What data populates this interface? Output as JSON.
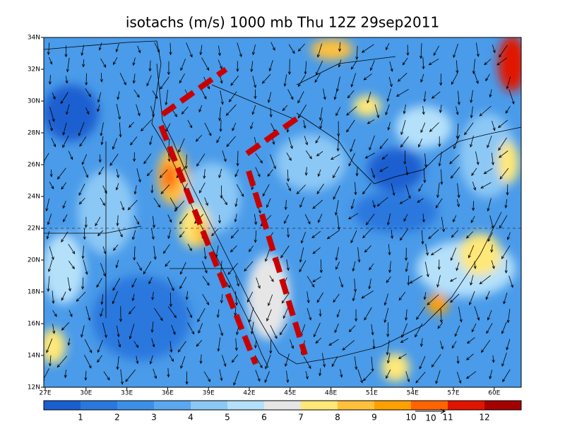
{
  "title": "isotachs (m/s) 1000 mb Thu 12Z 29sep2011",
  "lat_labels": [
    "12N",
    "14N",
    "16N",
    "18N",
    "20N",
    "22N",
    "24N",
    "26N",
    "28N",
    "30N",
    "32N",
    "34N"
  ],
  "lon_labels": [
    "27E",
    "30E",
    "33E",
    "36E",
    "39E",
    "42E",
    "45E",
    "48E",
    "51E",
    "54E",
    "57E",
    "60E"
  ],
  "colorbar": {
    "colors": [
      "#1a5fd0",
      "#2a78de",
      "#3c8fe6",
      "#5aa8f0",
      "#8cc8f5",
      "#b4e0fa",
      "#e6e6e6",
      "#ffe878",
      "#ffc03c",
      "#ffa000",
      "#ff6400",
      "#e11400",
      "#a50000"
    ],
    "labels": [
      "1",
      "2",
      "3",
      "4",
      "5",
      "6",
      "7",
      "8",
      "9",
      "10",
      "11",
      "12"
    ]
  },
  "vector_ref": "10"
}
